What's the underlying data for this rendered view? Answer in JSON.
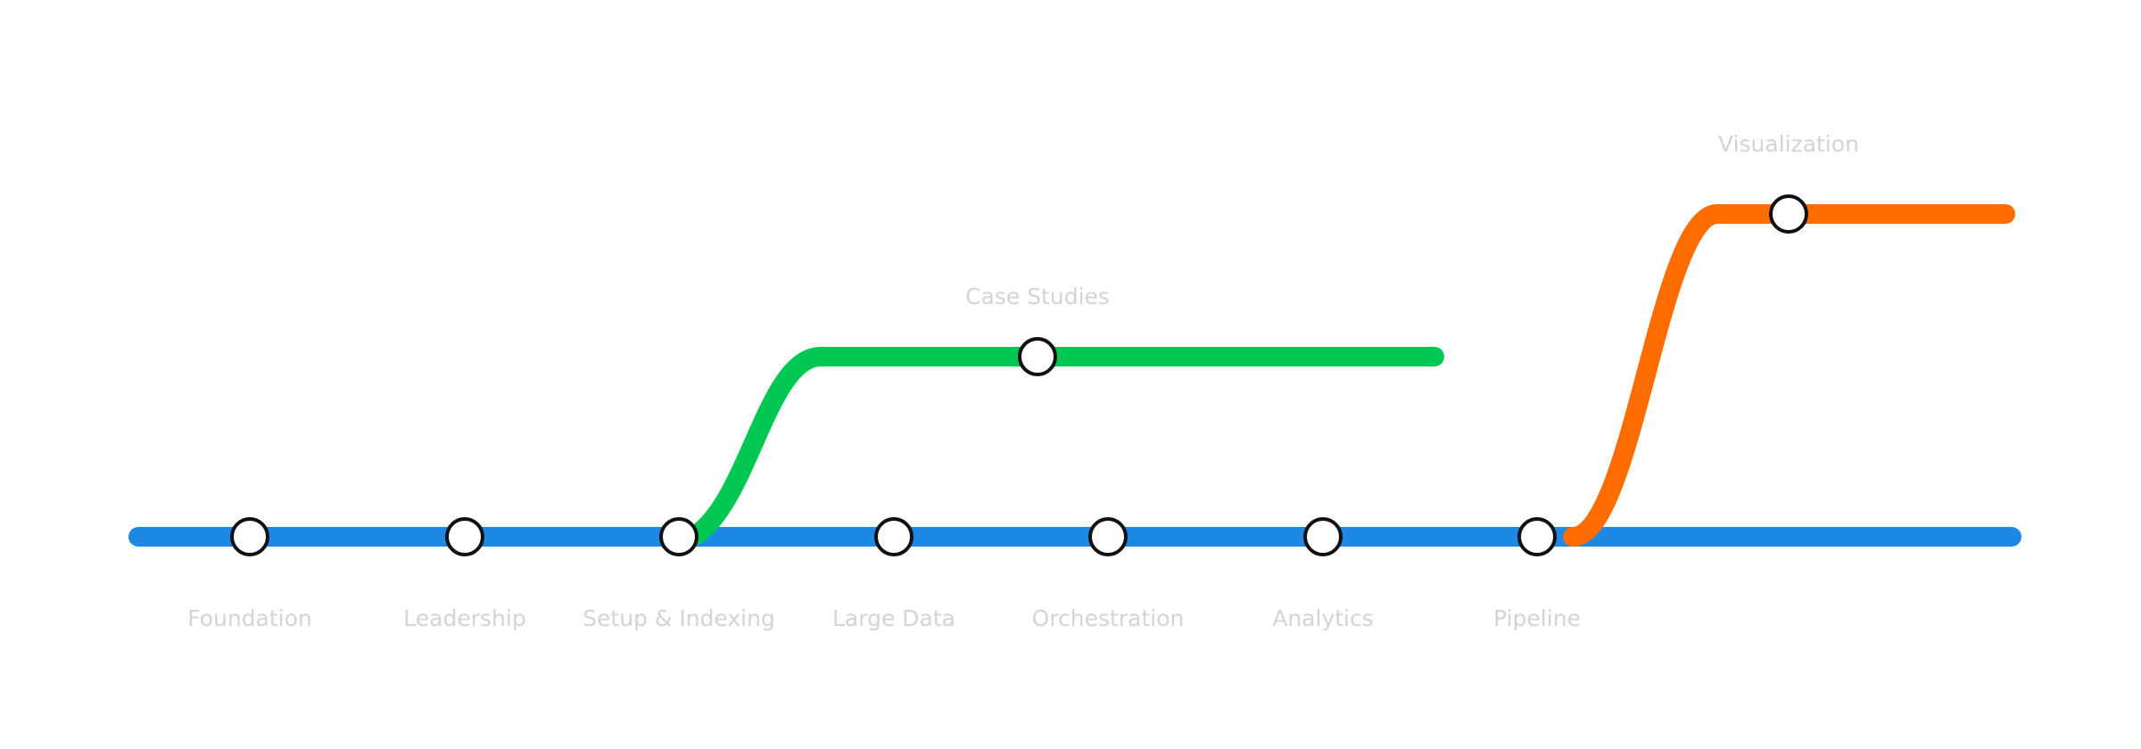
{
  "colors": {
    "main_line": "#1e88e5",
    "case_line": "#00c853",
    "viz_line": "#ff6d00",
    "station_fill": "#ffffff",
    "station_stroke": "#111111",
    "label_text": "#d4d4d4"
  },
  "main_line": {
    "stations": [
      {
        "label": "Foundation"
      },
      {
        "label": "Leadership"
      },
      {
        "label": "Setup & Indexing"
      },
      {
        "label": "Large Data"
      },
      {
        "label": "Orchestration"
      },
      {
        "label": "Analytics"
      },
      {
        "label": "Pipeline"
      }
    ]
  },
  "branches": [
    {
      "name": "case-studies",
      "station_label": "Case Studies"
    },
    {
      "name": "visualization",
      "station_label": "Visualization"
    }
  ]
}
